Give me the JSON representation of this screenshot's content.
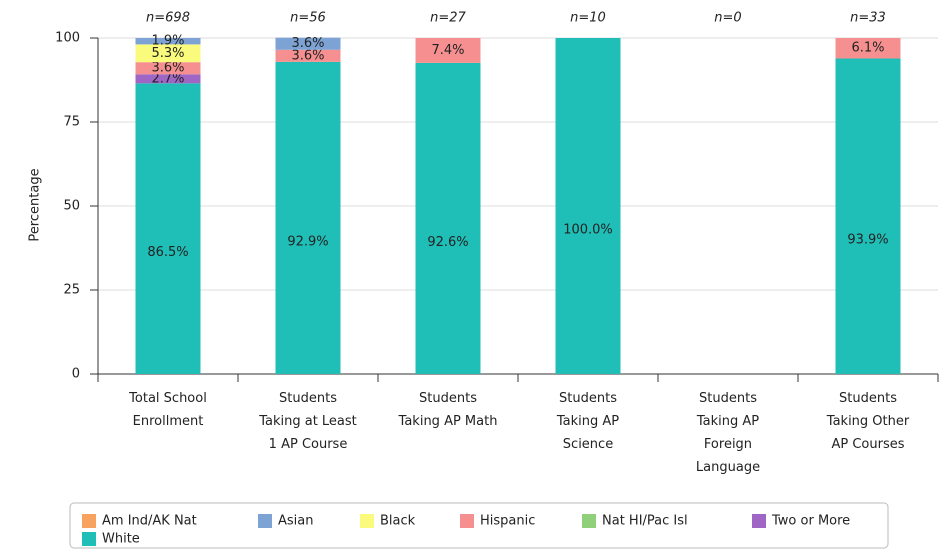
{
  "chart_data": {
    "type": "stacked_bar",
    "y_label": "Percentage",
    "categories": [
      [
        "Total School",
        "Enrollment"
      ],
      [
        "Students",
        "Taking at Least",
        "1 AP Course"
      ],
      [
        "Students",
        "Taking AP Math"
      ],
      [
        "Students",
        "Taking AP",
        "Science"
      ],
      [
        "Students",
        "Taking AP",
        "Foreign",
        "Language"
      ],
      [
        "Students",
        "Taking Other",
        "AP Courses"
      ]
    ],
    "n_labels": [
      "n=698",
      "n=56",
      "n=27",
      "n=10",
      "n=0",
      "n=33"
    ],
    "series": [
      {
        "name": "Am Ind/AK Nat",
        "color": "#f7a25e",
        "values": [
          0,
          0,
          0,
          0,
          null,
          0
        ],
        "value_labels": [
          null,
          null,
          null,
          null,
          null,
          null
        ]
      },
      {
        "name": "Asian",
        "color": "#7da3d4",
        "values": [
          1.9,
          3.6,
          0,
          0,
          null,
          0
        ],
        "value_labels": [
          "1.9%",
          "3.6%",
          null,
          null,
          null,
          null
        ]
      },
      {
        "name": "Black",
        "color": "#fafa7c",
        "values": [
          5.3,
          0,
          0,
          0,
          null,
          0
        ],
        "value_labels": [
          "5.3%",
          null,
          null,
          null,
          null,
          null
        ]
      },
      {
        "name": "Hispanic",
        "color": "#f69090",
        "values": [
          3.6,
          3.6,
          7.4,
          0,
          null,
          6.1
        ],
        "value_labels": [
          "3.6%",
          "3.6%",
          "7.4%",
          null,
          null,
          "6.1%"
        ]
      },
      {
        "name": "Nat HI/Pac Isl",
        "color": "#90d07a",
        "values": [
          0,
          0,
          0,
          0,
          null,
          0
        ],
        "value_labels": [
          null,
          null,
          null,
          null,
          null,
          null
        ]
      },
      {
        "name": "Two or More",
        "color": "#a066c6",
        "values": [
          2.7,
          0,
          0,
          0,
          null,
          0
        ],
        "value_labels": [
          "2.7%",
          null,
          null,
          null,
          null,
          null
        ]
      },
      {
        "name": "White",
        "color": "#1fbfb8",
        "values": [
          86.5,
          92.9,
          92.6,
          100,
          null,
          93.9
        ],
        "value_labels": [
          "86.5%",
          "92.9%",
          "92.6%",
          "100.0%",
          null,
          "93.9%"
        ]
      }
    ],
    "ylim": [
      0,
      100
    ],
    "yticks": [
      0,
      25,
      50,
      75,
      100
    ],
    "grid": true
  }
}
